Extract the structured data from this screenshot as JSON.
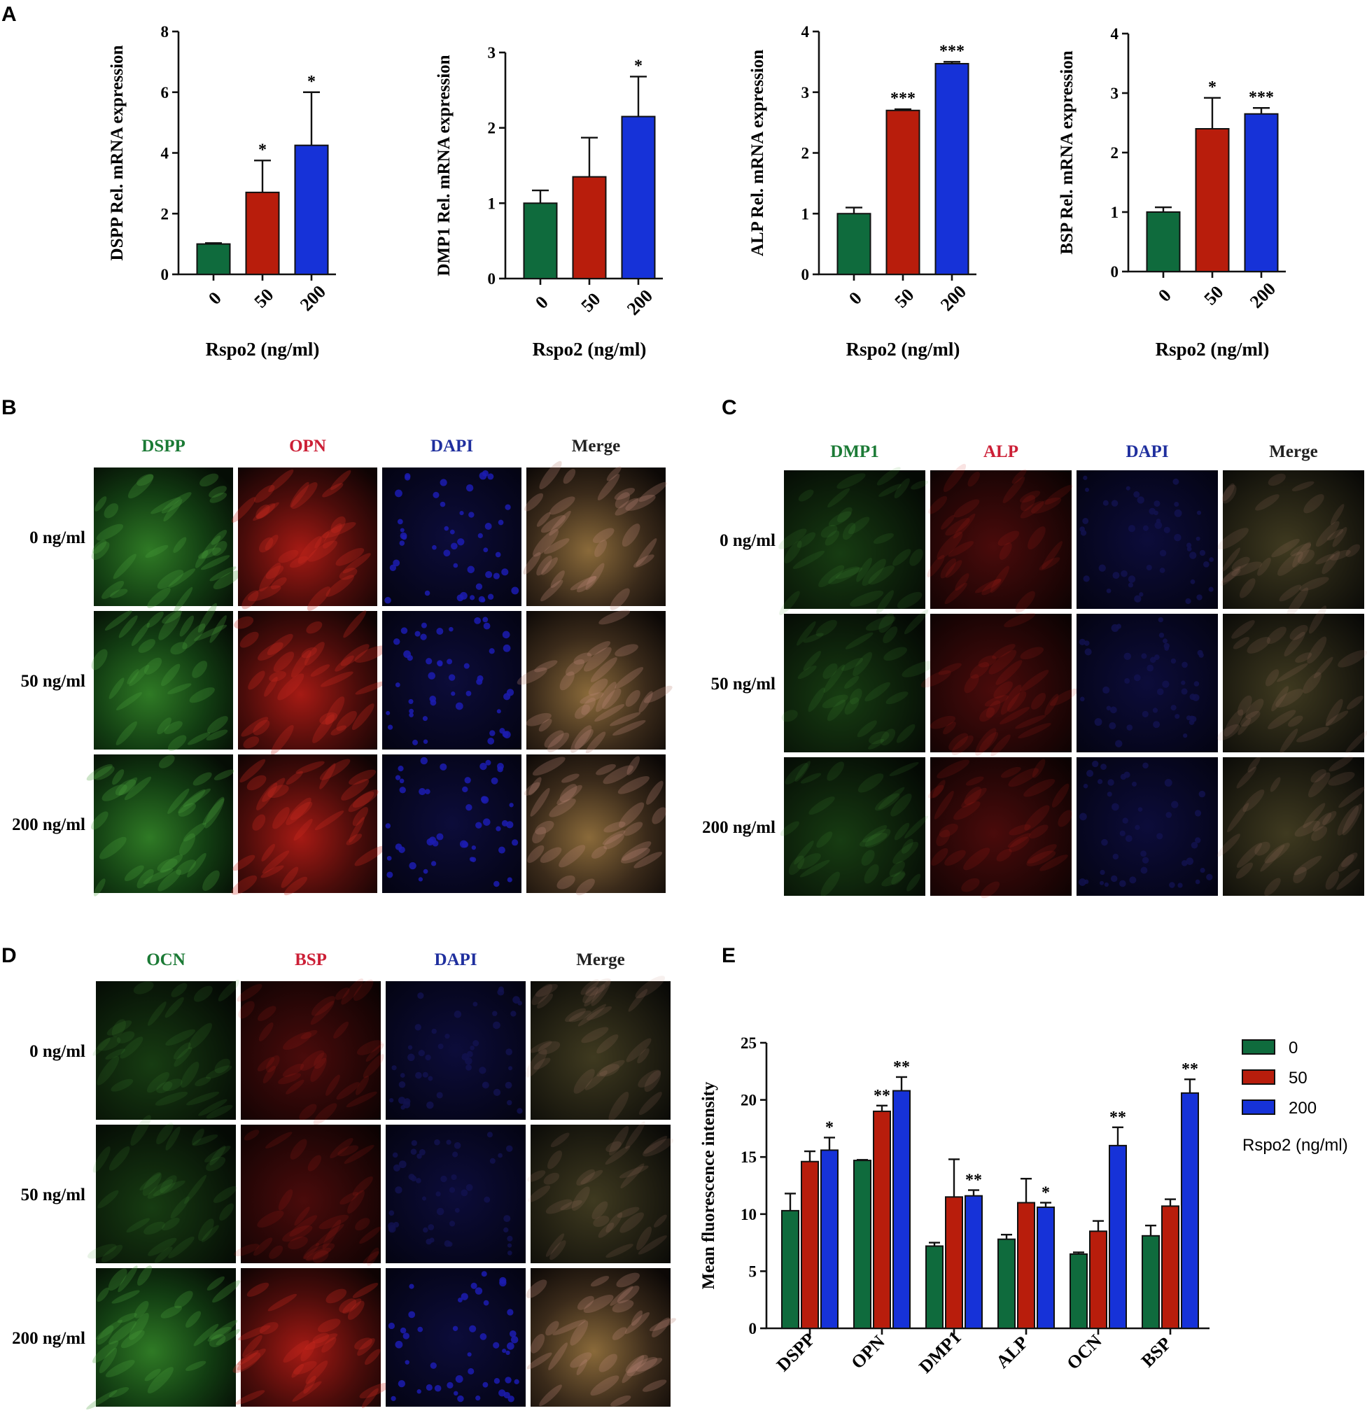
{
  "panels": {
    "A": "A",
    "B": "B",
    "C": "C",
    "D": "D",
    "E": "E"
  },
  "colors": {
    "green": "#0f6b3d",
    "red": "#b81d0c",
    "blue": "#1632d8",
    "chan_green": "#1b7a35",
    "chan_red": "#cc1f36",
    "chan_blue": "#1f2f9e"
  },
  "panel_a": {
    "xlabel": "Rspo2 (ng/ml)",
    "categories": [
      "0",
      "50",
      "200"
    ],
    "charts": [
      {
        "ylabel": "DSPP Rel. mRNA expression",
        "ylim": [
          0,
          8
        ],
        "yticks": [
          0,
          2,
          4,
          6,
          8
        ],
        "values": [
          1.0,
          2.7,
          4.25
        ],
        "errors": [
          0.03,
          1.05,
          1.75
        ],
        "stars": [
          "",
          "*",
          "*"
        ]
      },
      {
        "ylabel": "DMP1 Rel. mRNA expression",
        "ylim": [
          0,
          3
        ],
        "yticks": [
          0,
          1,
          2,
          3
        ],
        "values": [
          1.0,
          1.35,
          2.15
        ],
        "errors": [
          0.17,
          0.52,
          0.53
        ],
        "stars": [
          "",
          "",
          "*"
        ]
      },
      {
        "ylabel": "ALP Rel. mRNA expression",
        "ylim": [
          0,
          4
        ],
        "yticks": [
          0,
          1,
          2,
          3,
          4
        ],
        "values": [
          1.0,
          2.7,
          3.47
        ],
        "errors": [
          0.1,
          0.02,
          0.03
        ],
        "stars": [
          "",
          "***",
          "***"
        ]
      },
      {
        "ylabel": "BSP Rel. mRNA expression",
        "ylim": [
          0,
          4
        ],
        "yticks": [
          0,
          1,
          2,
          3,
          4
        ],
        "values": [
          1.0,
          2.4,
          2.65
        ],
        "errors": [
          0.08,
          0.52,
          0.1
        ],
        "stars": [
          "",
          "*",
          "***"
        ]
      }
    ]
  },
  "panel_b": {
    "channels": [
      "DSPP",
      "OPN",
      "DAPI",
      "Merge"
    ],
    "rows": [
      "0 ng/ml",
      "50 ng/ml",
      "200 ng/ml"
    ]
  },
  "panel_c": {
    "channels": [
      "DMP1",
      "ALP",
      "DAPI",
      "Merge"
    ],
    "rows": [
      "0 ng/ml",
      "50 ng/ml",
      "200 ng/ml"
    ]
  },
  "panel_d": {
    "channels": [
      "OCN",
      "BSP",
      "DAPI",
      "Merge"
    ],
    "rows": [
      "0 ng/ml",
      "50 ng/ml",
      "200 ng/ml"
    ]
  },
  "chart_data": {
    "type": "bar",
    "ylabel": "Mean fluorescence intensity",
    "ylim": [
      0,
      25
    ],
    "yticks": [
      0,
      5,
      10,
      15,
      20,
      25
    ],
    "categories": [
      "DSPP",
      "OPN",
      "DMP1",
      "ALP",
      "OCN",
      "BSP"
    ],
    "series": [
      {
        "name": "0",
        "values": [
          10.3,
          14.7,
          7.2,
          7.8,
          6.5,
          8.1
        ],
        "errors": [
          1.5,
          0.05,
          0.3,
          0.4,
          0.15,
          0.9
        ]
      },
      {
        "name": "50",
        "values": [
          14.6,
          19.0,
          11.5,
          11.0,
          8.5,
          10.7
        ],
        "errors": [
          0.9,
          0.5,
          3.3,
          2.1,
          0.9,
          0.6
        ]
      },
      {
        "name": "200",
        "values": [
          15.6,
          20.8,
          11.6,
          10.6,
          16.0,
          20.6
        ],
        "errors": [
          1.1,
          1.2,
          0.5,
          0.4,
          1.6,
          1.2
        ]
      }
    ],
    "stars": [
      [
        "",
        "",
        "*"
      ],
      [
        "",
        "**",
        "**"
      ],
      [
        "",
        "",
        "**"
      ],
      [
        "",
        "",
        "*"
      ],
      [
        "",
        "",
        "**"
      ],
      [
        "",
        "",
        "**"
      ]
    ],
    "legend_title": "Rspo2 (ng/ml)",
    "legend_position": "right"
  }
}
